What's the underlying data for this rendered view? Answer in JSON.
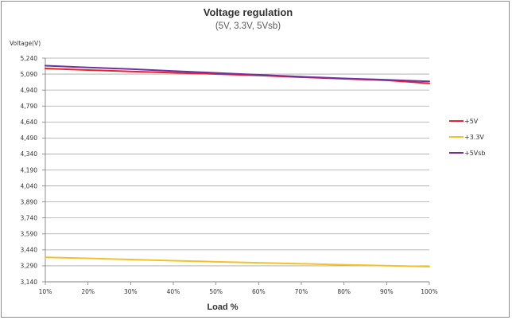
{
  "chart_data": {
    "type": "line",
    "title": "Voltage regulation",
    "subtitle": "(5V, 3.3V, 5Vsb)",
    "xlabel": "Load %",
    "ylabel": "Voltage(V)",
    "categories": [
      "10%",
      "20%",
      "30%",
      "40%",
      "50%",
      "60%",
      "70%",
      "80%",
      "90%",
      "100%"
    ],
    "yticks": [
      "5,240",
      "5,090",
      "4,940",
      "4,790",
      "4,640",
      "4,490",
      "4,340",
      "4,190",
      "4,040",
      "3,890",
      "3,740",
      "3,590",
      "3,440",
      "3,290",
      "3,140"
    ],
    "ylim": [
      3.14,
      5.24
    ],
    "grid": true,
    "legend_position": "right",
    "series": [
      {
        "name": "+5V",
        "color": "#e8232c",
        "values": [
          5.143,
          5.128,
          5.115,
          5.103,
          5.091,
          5.077,
          5.061,
          5.046,
          5.032,
          5.003
        ]
      },
      {
        "name": "+3.3V",
        "color": "#f6c124",
        "values": [
          3.37,
          3.36,
          3.349,
          3.338,
          3.328,
          3.318,
          3.309,
          3.3,
          3.291,
          3.282
        ]
      },
      {
        "name": "+5Vsb",
        "color": "#7030a0",
        "values": [
          5.169,
          5.152,
          5.137,
          5.119,
          5.101,
          5.083,
          5.065,
          5.049,
          5.036,
          5.021
        ]
      }
    ]
  }
}
